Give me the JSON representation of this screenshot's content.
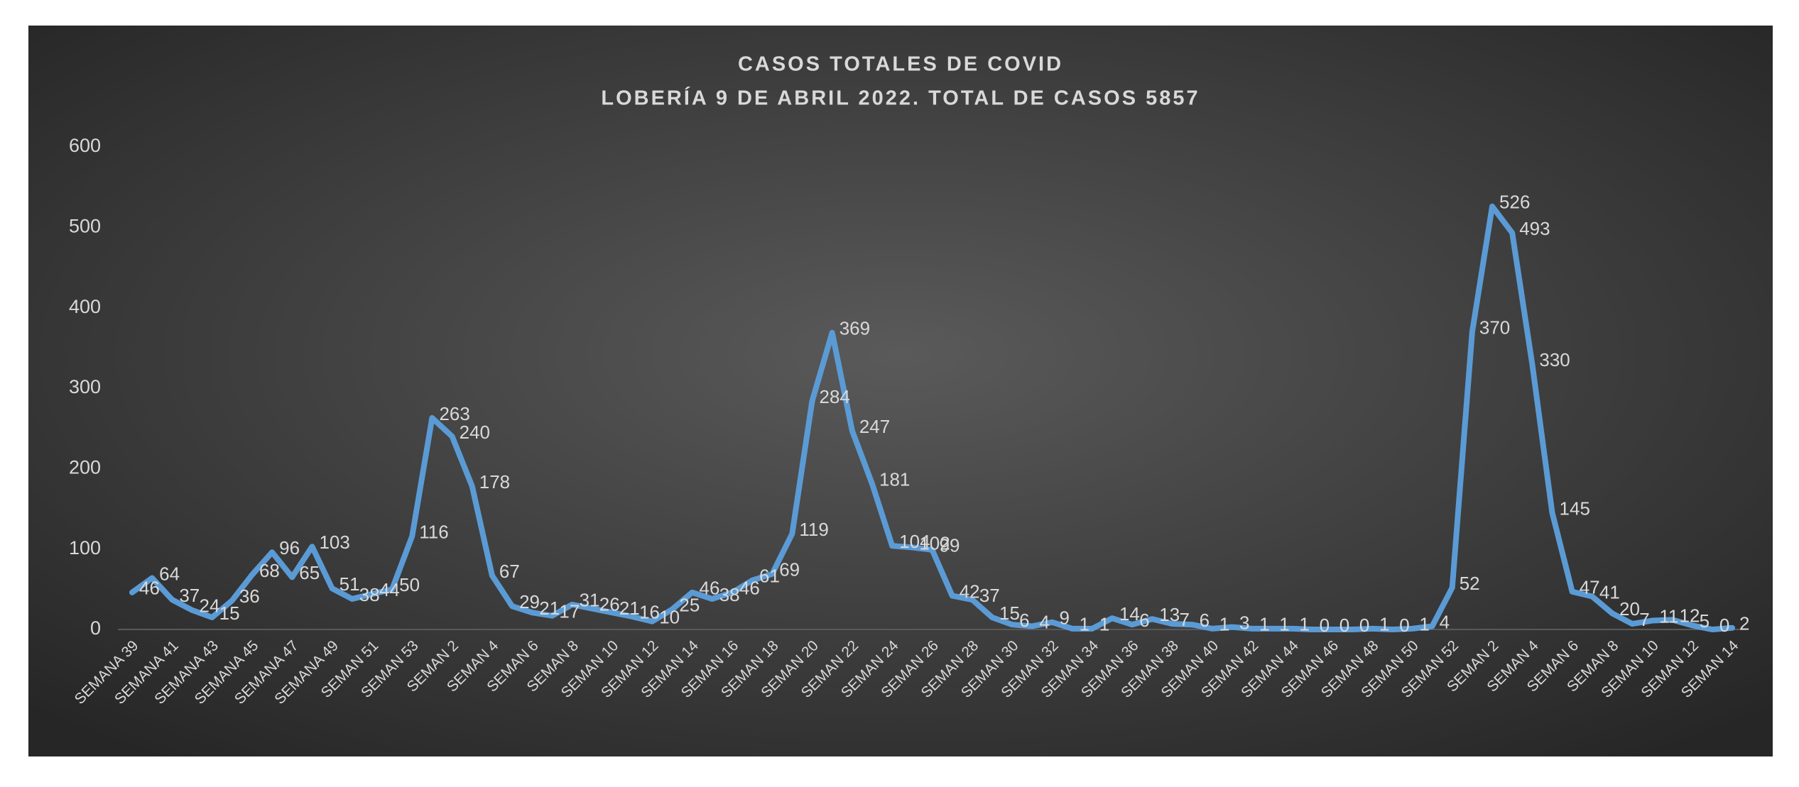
{
  "chart_data": {
    "type": "line",
    "title": "CASOS TOTALES DE COVID",
    "subtitle": "LOBERÍA 9 DE ABRIL 2022. TOTAL DE CASOS 5857",
    "categories": [
      "SEMANA 39",
      null,
      "SEMANA 41",
      null,
      "SEMANA 43",
      null,
      "SEMANA 45",
      null,
      "SEMANA 47",
      null,
      "SEMANA 49",
      null,
      "SEMAN 51",
      null,
      "SEMAN 53",
      null,
      "SEMAN 2",
      null,
      "SEMAN 4",
      null,
      "SEMAN 6",
      null,
      "SEMAN 8",
      null,
      "SEMAN 10",
      null,
      "SEMAN 12",
      null,
      "SEMAN 14",
      null,
      "SEMAN 16",
      null,
      "SEMAN 18",
      null,
      "SEMAN 20",
      null,
      "SEMAN 22",
      null,
      "SEMAN 24",
      null,
      "SEMAN 26",
      null,
      "SEMAN 28",
      null,
      "SEMAN 30",
      null,
      "SEMAN 32",
      null,
      "SEMAN 34",
      null,
      "SEMAN 36",
      null,
      "SEMAN 38",
      null,
      "SEMAN 40",
      null,
      "SEMAN 42",
      null,
      "SEMAN 44",
      null,
      "SEMAN 46",
      null,
      "SEMAN 48",
      null,
      "SEMAN 50",
      null,
      "SEMAN 52",
      null,
      "SEMAN 2",
      null,
      "SEMAN 4",
      null,
      "SEMAN 6",
      null,
      "SEMAN 8",
      null,
      "SEMAN 10",
      null,
      "SEMAN 12",
      null,
      "SEMAN 14"
    ],
    "values": [
      46,
      64,
      37,
      24,
      15,
      36,
      68,
      96,
      65,
      103,
      51,
      38,
      44,
      50,
      116,
      263,
      240,
      178,
      67,
      29,
      21,
      17,
      31,
      26,
      21,
      16,
      10,
      25,
      46,
      38,
      46,
      61,
      69,
      119,
      284,
      369,
      247,
      181,
      104,
      102,
      99,
      42,
      37,
      15,
      6,
      4,
      9,
      1,
      1,
      14,
      6,
      13,
      7,
      6,
      1,
      3,
      1,
      1,
      1,
      0,
      0,
      0,
      1,
      0,
      1,
      4,
      52,
      370,
      526,
      493,
      330,
      145,
      47,
      41,
      20,
      7,
      11,
      12,
      5,
      0,
      2
    ],
    "color": "#5b9bd5",
    "ylim": [
      0,
      600
    ],
    "yticks": [
      0,
      100,
      200,
      300,
      400,
      500,
      600
    ]
  }
}
